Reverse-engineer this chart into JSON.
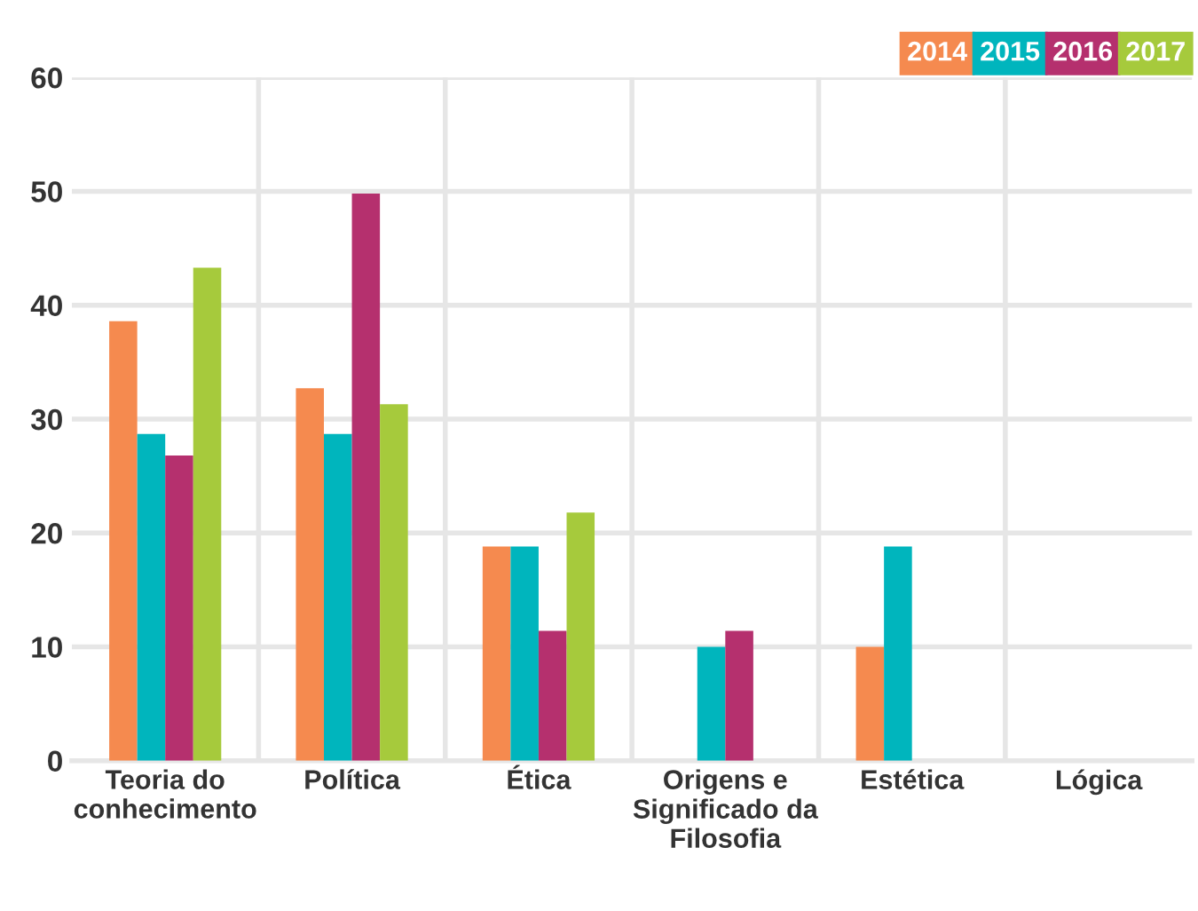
{
  "chart_data": {
    "type": "bar",
    "categories": [
      "Teoria do\nconhecimento",
      "Política",
      "Ética",
      "Origens e\nSignificado da\nFilosofia",
      "Estética",
      "Lógica"
    ],
    "series": [
      {
        "name": "2014",
        "color": "#f58a4f",
        "values": [
          38.6,
          32.7,
          18.8,
          null,
          10,
          null
        ]
      },
      {
        "name": "2015",
        "color": "#00b5bd",
        "values": [
          28.7,
          28.7,
          18.8,
          10,
          18.8,
          null
        ]
      },
      {
        "name": "2016",
        "color": "#b5306e",
        "values": [
          26.8,
          49.8,
          11.4,
          11.4,
          null,
          null
        ]
      },
      {
        "name": "2017",
        "color": "#a6ca3c",
        "values": [
          43.3,
          31.3,
          21.8,
          null,
          null,
          null
        ]
      }
    ],
    "ylim": [
      0,
      60
    ],
    "yticks": [
      0,
      10,
      20,
      30,
      40,
      50,
      60
    ],
    "grid": true,
    "legend": "top right"
  }
}
